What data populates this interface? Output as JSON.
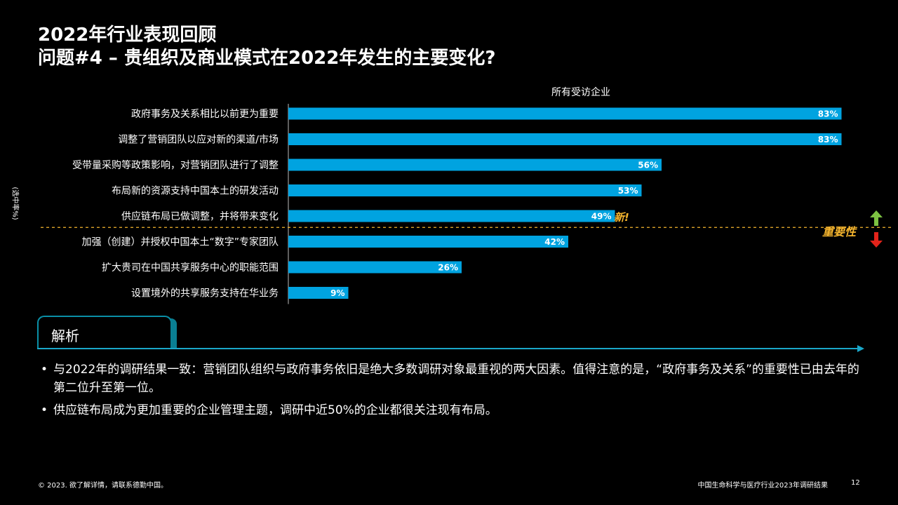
{
  "title": {
    "line1": "2022年行业表现回顾",
    "line2": "问题#4 – 贵组织及商业模式在2022年发生的主要变化?"
  },
  "side_note": "(选中率%)",
  "chart_data": {
    "type": "bar",
    "orientation": "horizontal",
    "series_header": "所有受访企业",
    "categories": [
      "政府事务及关系相比以前更为重要",
      "调整了营销团队以应对新的渠道/市场",
      "受带量采购等政策影响，对营销团队进行了调整",
      "布局新的资源支持中国本土的研发活动",
      "供应链布局已做调整，并将带来变化",
      "加强（创建）并授权中国本土“数字”专家团队",
      "扩大贵司在中国共享服务中心的职能范围",
      "设置境外的共享服务支持在华业务"
    ],
    "values": [
      83,
      83,
      56,
      53,
      49,
      42,
      26,
      9
    ],
    "value_labels": [
      "83%",
      "83%",
      "56%",
      "53%",
      "49%",
      "42%",
      "26%",
      "9%"
    ],
    "xlim": [
      0,
      100
    ],
    "bar_color": "#00a3e0",
    "divider_after_index": 4
  },
  "annotations": {
    "new_marker": "新!",
    "importance_label": "重要性",
    "up_color": "#7dc242",
    "down_color": "#e2231a",
    "accent": "#f5b52e"
  },
  "analysis": {
    "label": "解析",
    "bullets": [
      "与2022年的调研结果一致：营销团队组织与政府事务依旧是绝大多数调研对象最重视的两大因素。值得注意的是，“政府事务及关系”的重要性已由去年的第二位升至第一位。",
      "供应链布局成为更加重要的企业管理主题，调研中近50%的企业都很关注现有布局。"
    ]
  },
  "footer": {
    "copyright": "© 2023. 欲了解详情，请联系德勤中国。",
    "report_name": "中国生命科学与医疗行业2023年调研结果",
    "page_number": "12"
  }
}
